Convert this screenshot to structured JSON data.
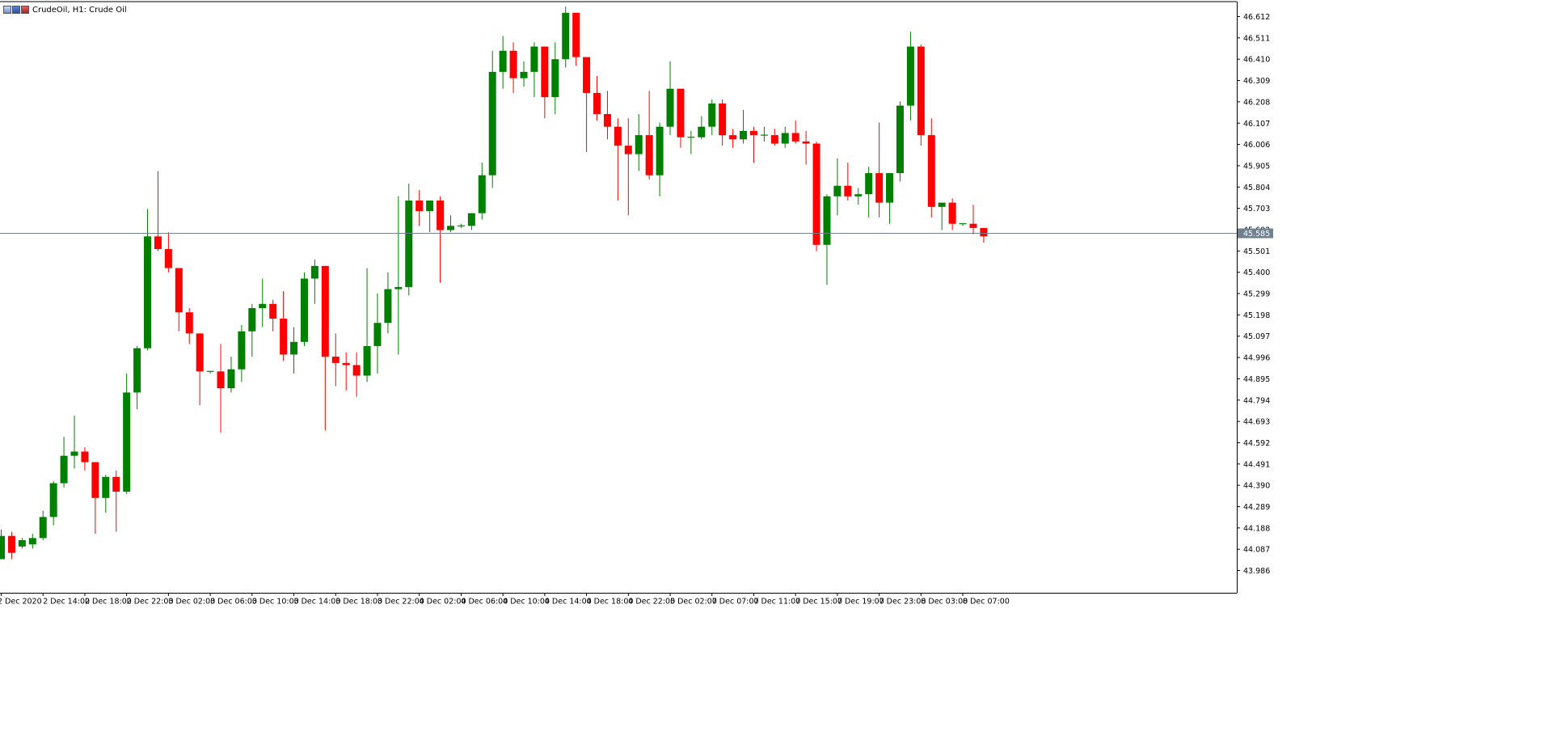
{
  "header": {
    "symbol_title": "CrudeOil, H1:  Crude Oil",
    "icons": [
      "chart-settings-icon",
      "trade-arrow-icon",
      "indicator-icon"
    ]
  },
  "colors": {
    "bull": "#008000",
    "bear": "#ff0000",
    "axis": "#000000",
    "current_line": "#708090",
    "price_tag_bg": "#708090",
    "price_tag_text": "#ffffff"
  },
  "current_price": "45.585",
  "chart_data": {
    "type": "candlestick",
    "title": "CrudeOil, H1:  Crude Oil",
    "ylim": [
      43.93,
      46.66
    ],
    "y_ticks": [
      "46.612",
      "46.511",
      "46.410",
      "46.309",
      "46.208",
      "46.107",
      "46.006",
      "45.905",
      "45.804",
      "45.703",
      "45.602",
      "45.501",
      "45.400",
      "45.299",
      "45.198",
      "45.097",
      "44.996",
      "44.895",
      "44.794",
      "44.693",
      "44.592",
      "44.491",
      "44.390",
      "44.289",
      "44.188",
      "44.087",
      "43.986"
    ],
    "x_ticks": [
      "2 Dec 2020",
      "2 Dec 14:00",
      "2 Dec 18:00",
      "2 Dec 22:00",
      "3 Dec 02:00",
      "3 Dec 06:00",
      "3 Dec 10:00",
      "3 Dec 14:00",
      "3 Dec 18:00",
      "3 Dec 22:00",
      "4 Dec 02:00",
      "4 Dec 06:00",
      "4 Dec 10:00",
      "4 Dec 14:00",
      "4 Dec 18:00",
      "4 Dec 22:00",
      "5 Dec 02:00",
      "7 Dec 07:00",
      "7 Dec 11:00",
      "7 Dec 15:00",
      "7 Dec 19:00",
      "7 Dec 23:00",
      "8 Dec 03:00",
      "8 Dec 07:00"
    ],
    "x_tick_every": 4,
    "current_price": 45.585,
    "candles": [
      [
        44.04,
        44.18,
        44.04,
        44.15
      ],
      [
        44.15,
        44.17,
        44.04,
        44.07
      ],
      [
        44.1,
        44.14,
        44.09,
        44.13
      ],
      [
        44.11,
        44.16,
        44.09,
        44.14
      ],
      [
        44.14,
        44.27,
        44.13,
        44.24
      ],
      [
        44.24,
        44.41,
        44.2,
        44.4
      ],
      [
        44.4,
        44.62,
        44.38,
        44.53
      ],
      [
        44.53,
        44.72,
        44.47,
        44.55
      ],
      [
        44.55,
        44.57,
        44.46,
        44.5
      ],
      [
        44.5,
        44.5,
        44.16,
        44.33
      ],
      [
        44.33,
        44.44,
        44.26,
        44.43
      ],
      [
        44.43,
        44.46,
        44.17,
        44.36
      ],
      [
        44.36,
        44.92,
        44.35,
        44.83
      ],
      [
        44.83,
        45.05,
        44.75,
        45.04
      ],
      [
        45.04,
        45.7,
        45.03,
        45.57
      ],
      [
        45.57,
        45.88,
        45.5,
        45.51
      ],
      [
        45.51,
        45.59,
        45.4,
        45.42
      ],
      [
        45.42,
        45.42,
        45.12,
        45.21
      ],
      [
        45.21,
        45.23,
        45.06,
        45.11
      ],
      [
        45.11,
        45.11,
        44.77,
        44.93
      ],
      [
        44.93,
        44.93,
        44.92,
        44.93
      ],
      [
        44.93,
        45.06,
        44.64,
        44.85
      ],
      [
        44.85,
        45.0,
        44.83,
        44.94
      ],
      [
        44.94,
        45.15,
        44.88,
        45.12
      ],
      [
        45.12,
        45.25,
        45.0,
        45.23
      ],
      [
        45.23,
        45.37,
        45.14,
        45.25
      ],
      [
        45.25,
        45.27,
        45.12,
        45.18
      ],
      [
        45.18,
        45.31,
        44.98,
        45.01
      ],
      [
        45.01,
        45.14,
        44.92,
        45.07
      ],
      [
        45.07,
        45.4,
        45.05,
        45.37
      ],
      [
        45.37,
        45.46,
        45.25,
        45.43
      ],
      [
        45.43,
        45.43,
        44.65,
        45.0
      ],
      [
        45.0,
        45.11,
        44.86,
        44.97
      ],
      [
        44.97,
        45.02,
        44.84,
        44.96
      ],
      [
        44.96,
        45.02,
        44.81,
        44.91
      ],
      [
        44.91,
        45.42,
        44.88,
        45.05
      ],
      [
        45.05,
        45.3,
        44.92,
        45.16
      ],
      [
        45.16,
        45.4,
        45.11,
        45.32
      ],
      [
        45.32,
        45.76,
        45.01,
        45.33
      ],
      [
        45.33,
        45.82,
        45.29,
        45.74
      ],
      [
        45.74,
        45.79,
        45.62,
        45.69
      ],
      [
        45.69,
        45.74,
        45.59,
        45.74
      ],
      [
        45.74,
        45.76,
        45.35,
        45.6
      ],
      [
        45.6,
        45.67,
        45.59,
        45.62
      ],
      [
        45.62,
        45.63,
        45.61,
        45.62
      ],
      [
        45.62,
        45.68,
        45.6,
        45.68
      ],
      [
        45.68,
        45.92,
        45.65,
        45.86
      ],
      [
        45.86,
        46.45,
        45.8,
        46.35
      ],
      [
        46.35,
        46.52,
        46.27,
        46.45
      ],
      [
        46.45,
        46.49,
        46.25,
        46.32
      ],
      [
        46.32,
        46.4,
        46.28,
        46.35
      ],
      [
        46.35,
        46.49,
        46.23,
        46.47
      ],
      [
        46.47,
        46.47,
        46.13,
        46.23
      ],
      [
        46.23,
        46.49,
        46.15,
        46.41
      ],
      [
        46.41,
        46.66,
        46.37,
        46.63
      ],
      [
        46.63,
        46.63,
        46.38,
        46.42
      ],
      [
        46.42,
        46.42,
        45.97,
        46.25
      ],
      [
        46.25,
        46.33,
        46.12,
        46.15
      ],
      [
        46.15,
        46.26,
        46.03,
        46.09
      ],
      [
        46.09,
        46.13,
        45.74,
        46.0
      ],
      [
        46.0,
        46.13,
        45.67,
        45.96
      ],
      [
        45.96,
        46.15,
        45.88,
        46.05
      ],
      [
        46.05,
        46.26,
        45.84,
        45.86
      ],
      [
        45.86,
        46.11,
        45.76,
        46.09
      ],
      [
        46.09,
        46.4,
        46.05,
        46.27
      ],
      [
        46.27,
        46.27,
        45.99,
        46.04
      ],
      [
        46.04,
        46.07,
        45.96,
        46.04
      ],
      [
        46.04,
        46.14,
        46.03,
        46.09
      ],
      [
        46.09,
        46.22,
        46.05,
        46.2
      ],
      [
        46.2,
        46.22,
        46.0,
        46.05
      ],
      [
        46.05,
        46.08,
        45.99,
        46.03
      ],
      [
        46.03,
        46.17,
        46.01,
        46.07
      ],
      [
        46.07,
        46.09,
        45.92,
        46.05
      ],
      [
        46.05,
        46.09,
        46.02,
        46.05
      ],
      [
        46.05,
        46.08,
        46.0,
        46.01
      ],
      [
        46.01,
        46.09,
        45.99,
        46.06
      ],
      [
        46.06,
        46.12,
        46.01,
        46.02
      ],
      [
        46.02,
        46.07,
        45.91,
        46.01
      ],
      [
        46.01,
        46.02,
        45.5,
        45.53
      ],
      [
        45.53,
        45.77,
        45.34,
        45.76
      ],
      [
        45.76,
        45.94,
        45.67,
        45.81
      ],
      [
        45.81,
        45.92,
        45.74,
        45.76
      ],
      [
        45.76,
        45.8,
        45.72,
        45.77
      ],
      [
        45.77,
        45.9,
        45.66,
        45.87
      ],
      [
        45.87,
        46.11,
        45.66,
        45.73
      ],
      [
        45.73,
        45.87,
        45.63,
        45.87
      ],
      [
        45.87,
        46.21,
        45.83,
        46.19
      ],
      [
        46.19,
        46.54,
        46.12,
        46.47
      ],
      [
        46.47,
        46.48,
        46.0,
        46.05
      ],
      [
        46.05,
        46.13,
        45.66,
        45.71
      ],
      [
        45.71,
        45.73,
        45.6,
        45.73
      ],
      [
        45.73,
        45.75,
        45.6,
        45.63
      ],
      [
        45.63,
        45.63,
        45.62,
        45.63
      ],
      [
        45.63,
        45.72,
        45.58,
        45.61
      ],
      [
        45.61,
        45.61,
        45.54,
        45.57
      ]
    ]
  }
}
